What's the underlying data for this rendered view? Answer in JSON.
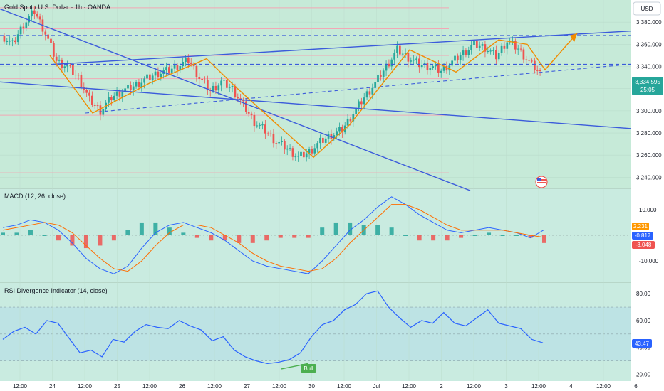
{
  "header": {
    "title": "Gold Spot / U.S. Dollar · 1h · OANDA",
    "currency": "USD"
  },
  "colors": {
    "up": "#26a69a",
    "down": "#ef5350",
    "trend": "#3b5bdb",
    "zigzag": "#f08c00",
    "macd_line": "#2962ff",
    "signal_line": "#ff6d00",
    "rsi_line": "#2962ff",
    "bull_badge": "#4caf50"
  },
  "chart_data": [
    {
      "type": "candlestick",
      "title": "Gold Spot / U.S. Dollar · 1h · OANDA",
      "ylim": [
        3230,
        3400
      ],
      "yticks": [
        "3,380.000",
        "3,360.000",
        "3,340.000",
        "3,320.000",
        "3,300.000",
        "3,280.000",
        "3,260.000",
        "3,240.000"
      ],
      "ytick_values": [
        3380,
        3360,
        3340,
        3320,
        3300,
        3280,
        3260,
        3240
      ],
      "last_price": "3,334.595",
      "countdown": "25:05",
      "xticks": [
        "12:00",
        "24",
        "12:00",
        "25",
        "12:00",
        "26",
        "12:00",
        "27",
        "12:00",
        "30",
        "12:00",
        "Jul",
        "12:00",
        "2",
        "12:00",
        "3",
        "12:00",
        "4",
        "12:00",
        "6"
      ],
      "close_path": [
        3368,
        3360,
        3378,
        3390,
        3370,
        3345,
        3340,
        3330,
        3310,
        3300,
        3312,
        3318,
        3322,
        3328,
        3333,
        3336,
        3340,
        3346,
        3330,
        3318,
        3326,
        3320,
        3305,
        3290,
        3282,
        3272,
        3266,
        3258,
        3263,
        3272,
        3278,
        3283,
        3298,
        3312,
        3325,
        3340,
        3355,
        3348,
        3342,
        3340,
        3336,
        3344,
        3352,
        3360,
        3357,
        3349,
        3363,
        3356,
        3344,
        3334
      ]
    },
    {
      "type": "line",
      "title": "MACD (12, 26, close)",
      "yticks": [
        "10.000",
        "-10.000"
      ],
      "ytick_values": [
        10,
        -10
      ],
      "ylim": [
        -18,
        18
      ],
      "labels": {
        "macd": "2.231",
        "signal": "-0.817",
        "histogram": "-3.048"
      },
      "macd": [
        3,
        4,
        6,
        5,
        2,
        -3,
        -9,
        -13,
        -15,
        -12,
        -5,
        1,
        4,
        5,
        3,
        1,
        -2,
        -6,
        -10,
        -12,
        -13,
        -14,
        -15,
        -10,
        -4,
        2,
        6,
        11,
        15,
        12,
        8,
        5,
        2,
        1,
        2,
        3,
        2,
        1,
        -1,
        2.2
      ],
      "signal": [
        2,
        3,
        4,
        5,
        4,
        1,
        -4,
        -9,
        -13,
        -14,
        -10,
        -4,
        1,
        4,
        4,
        3,
        0,
        -3,
        -7,
        -10,
        -12,
        -13,
        -14,
        -13,
        -9,
        -3,
        2,
        7,
        12,
        12,
        10,
        7,
        4,
        2,
        2,
        2,
        2,
        1,
        0,
        -0.8
      ],
      "histogram": [
        1,
        1,
        2,
        0,
        -2,
        -4,
        -5,
        -4,
        -2,
        2,
        5,
        5,
        3,
        1,
        -1,
        -2,
        -2,
        -3,
        -3,
        -2,
        -1,
        -1,
        -1,
        3,
        5,
        5,
        4,
        4,
        3,
        0,
        -2,
        -2,
        -2,
        -1,
        0,
        1,
        0,
        0,
        -1,
        -3
      ]
    },
    {
      "type": "line",
      "title": "RSI Divergence Indicator (14, close)",
      "yticks": [
        "80.00",
        "60.00",
        "40.00",
        "20.00"
      ],
      "ytick_values": [
        80,
        60,
        40,
        20
      ],
      "ylim": [
        15,
        88
      ],
      "last_value": "43.47",
      "annotation": "Bull",
      "values": [
        46,
        52,
        55,
        50,
        60,
        58,
        47,
        36,
        38,
        33,
        46,
        44,
        52,
        57,
        55,
        54,
        60,
        56,
        53,
        45,
        48,
        38,
        33,
        30,
        28,
        29,
        31,
        36,
        48,
        57,
        60,
        68,
        72,
        80,
        82,
        70,
        62,
        55,
        60,
        58,
        66,
        58,
        56,
        62,
        68,
        58,
        56,
        54,
        46,
        43.47
      ]
    }
  ]
}
